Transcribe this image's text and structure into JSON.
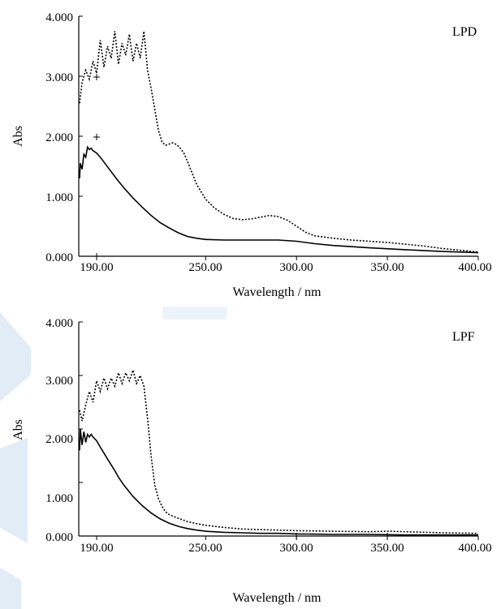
{
  "chart_data": [
    {
      "type": "line",
      "panel_label": "LPD",
      "xlabel": "Wavelength / nm",
      "ylabel": "Abs",
      "xlim": [
        180,
        400
      ],
      "ylim": [
        0,
        4
      ],
      "x_ticks": [
        190,
        250,
        300,
        350,
        400
      ],
      "x_tick_labels": [
        "190.00",
        "250.00",
        "300.00",
        "350.00",
        "400.00"
      ],
      "y_ticks": [
        0,
        1,
        2,
        3,
        4
      ],
      "y_tick_labels": [
        "0.000",
        "1.000",
        "2.000",
        "3.000",
        "4.000"
      ],
      "grid": false,
      "series": [
        {
          "style": "dotted",
          "x": [
            180,
            182,
            184,
            186,
            188,
            190,
            192,
            194,
            196,
            198,
            200,
            202,
            204,
            206,
            208,
            210,
            212,
            214,
            216,
            218,
            220,
            222,
            224,
            226,
            228,
            230,
            232,
            234,
            236,
            238,
            240,
            245,
            250,
            255,
            260,
            265,
            270,
            275,
            280,
            285,
            290,
            295,
            300,
            305,
            310,
            320,
            330,
            340,
            350,
            360,
            370,
            380,
            390,
            400
          ],
          "y": [
            2.55,
            2.9,
            3.1,
            2.95,
            3.25,
            3.05,
            3.6,
            3.15,
            3.5,
            3.3,
            3.75,
            3.2,
            3.55,
            3.35,
            3.7,
            3.25,
            3.55,
            3.3,
            3.75,
            3.1,
            2.8,
            2.45,
            2.1,
            1.9,
            1.85,
            1.87,
            1.89,
            1.86,
            1.8,
            1.72,
            1.58,
            1.2,
            0.95,
            0.8,
            0.7,
            0.63,
            0.61,
            0.62,
            0.65,
            0.68,
            0.66,
            0.6,
            0.5,
            0.4,
            0.34,
            0.3,
            0.27,
            0.25,
            0.23,
            0.2,
            0.17,
            0.13,
            0.1,
            0.07
          ]
        },
        {
          "style": "solid",
          "x": [
            180,
            181,
            182,
            183,
            184,
            185,
            186,
            187,
            188,
            190,
            192,
            194,
            196,
            198,
            200,
            202,
            205,
            210,
            215,
            220,
            225,
            230,
            235,
            240,
            245,
            250,
            260,
            270,
            280,
            290,
            300,
            310,
            320,
            340,
            360,
            380,
            400
          ],
          "y": [
            1.3,
            1.55,
            1.45,
            1.7,
            1.65,
            1.82,
            1.78,
            1.8,
            1.76,
            1.72,
            1.65,
            1.57,
            1.49,
            1.41,
            1.33,
            1.25,
            1.14,
            0.97,
            0.82,
            0.68,
            0.56,
            0.47,
            0.39,
            0.33,
            0.3,
            0.28,
            0.27,
            0.27,
            0.27,
            0.27,
            0.25,
            0.21,
            0.18,
            0.14,
            0.11,
            0.08,
            0.06
          ]
        }
      ]
    },
    {
      "type": "line",
      "panel_label": "LPF",
      "xlabel": "Wavelength / nm",
      "ylabel": "Abs",
      "xlim": [
        180,
        400
      ],
      "ylim": [
        0,
        4
      ],
      "x_ticks": [
        190,
        250,
        300,
        350,
        400
      ],
      "x_tick_labels": [
        "190.00",
        "250.00",
        "300.00",
        "350.00",
        "400.00"
      ],
      "y_ticks": [
        0,
        1,
        2,
        3,
        4
      ],
      "y_tick_labels": [
        "0.000",
        "1.000",
        "2.000",
        "3.000",
        "4.000"
      ],
      "grid": false,
      "series": [
        {
          "style": "dotted",
          "x": [
            180,
            182,
            184,
            186,
            188,
            190,
            192,
            194,
            196,
            198,
            200,
            202,
            204,
            206,
            208,
            210,
            212,
            214,
            216,
            218,
            220,
            222,
            224,
            226,
            228,
            230,
            235,
            240,
            245,
            250,
            260,
            270,
            280,
            290,
            300,
            320,
            340,
            350,
            360,
            380,
            400
          ],
          "y": [
            2.35,
            2.15,
            2.45,
            2.7,
            2.5,
            2.9,
            2.7,
            2.95,
            2.75,
            2.95,
            2.8,
            3.05,
            2.85,
            3.05,
            2.9,
            3.1,
            2.85,
            3.0,
            2.8,
            2.2,
            1.5,
            0.95,
            0.7,
            0.55,
            0.45,
            0.4,
            0.33,
            0.27,
            0.23,
            0.2,
            0.16,
            0.13,
            0.12,
            0.11,
            0.1,
            0.09,
            0.08,
            0.09,
            0.08,
            0.06,
            0.05
          ]
        },
        {
          "style": "solid",
          "x": [
            180,
            181,
            182,
            183,
            184,
            185,
            186,
            187,
            188,
            190,
            192,
            194,
            196,
            198,
            200,
            202,
            205,
            210,
            215,
            220,
            225,
            230,
            235,
            240,
            245,
            250,
            260,
            270,
            280,
            290,
            300,
            320,
            340,
            360,
            380,
            400
          ],
          "y": [
            1.6,
            2.0,
            1.7,
            1.95,
            1.75,
            1.9,
            1.85,
            1.9,
            1.85,
            1.78,
            1.66,
            1.55,
            1.44,
            1.33,
            1.22,
            1.1,
            0.95,
            0.74,
            0.57,
            0.43,
            0.32,
            0.24,
            0.18,
            0.14,
            0.11,
            0.09,
            0.07,
            0.06,
            0.05,
            0.05,
            0.04,
            0.03,
            0.03,
            0.02,
            0.02,
            0.02
          ]
        }
      ]
    }
  ]
}
